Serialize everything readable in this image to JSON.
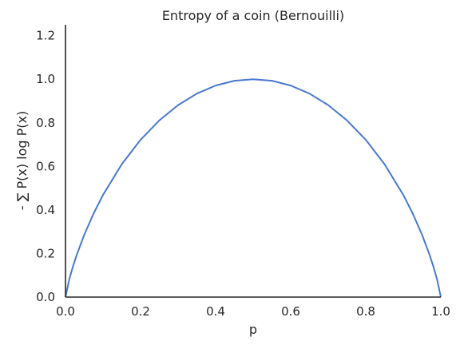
{
  "chart_data": {
    "type": "line",
    "title": "Entropy of a coin (Bernouilli)",
    "xlabel": "p",
    "ylabel": "- ∑ P(x) log P(x)",
    "xlim": [
      0.0,
      1.0
    ],
    "ylim": [
      0.0,
      1.25
    ],
    "xticks": [
      "0.0",
      "0.2",
      "0.4",
      "0.6",
      "0.8",
      "1.0"
    ],
    "yticks": [
      "0.0",
      "0.2",
      "0.4",
      "0.6",
      "0.8",
      "1.0",
      "1.2"
    ],
    "grid": false,
    "series": [
      {
        "color": "#4878cf",
        "x": [
          0.0,
          0.01,
          0.02,
          0.03,
          0.05,
          0.075,
          0.1,
          0.15,
          0.2,
          0.25,
          0.3,
          0.35,
          0.4,
          0.45,
          0.5,
          0.55,
          0.6,
          0.65,
          0.7,
          0.75,
          0.8,
          0.85,
          0.9,
          0.925,
          0.95,
          0.97,
          0.98,
          0.99,
          1.0
        ],
        "y": [
          0.0,
          0.081,
          0.141,
          0.194,
          0.286,
          0.384,
          0.469,
          0.61,
          0.722,
          0.811,
          0.881,
          0.934,
          0.971,
          0.993,
          1.0,
          0.993,
          0.971,
          0.934,
          0.881,
          0.811,
          0.722,
          0.61,
          0.469,
          0.384,
          0.286,
          0.194,
          0.141,
          0.081,
          0.0
        ]
      }
    ]
  }
}
